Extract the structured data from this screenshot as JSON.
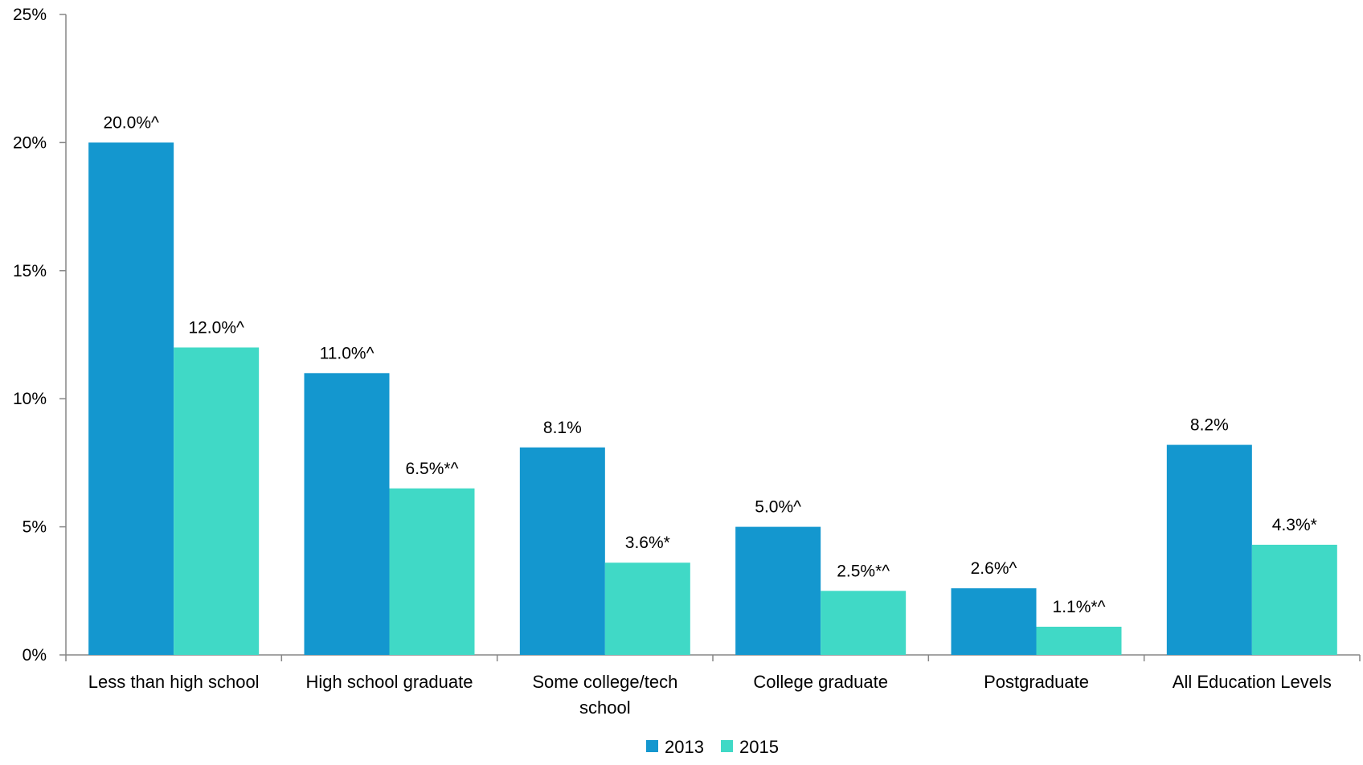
{
  "chart_data": {
    "type": "bar",
    "title": "",
    "xlabel": "",
    "ylabel": "",
    "categories": [
      [
        "Less than high school"
      ],
      [
        "High school graduate"
      ],
      [
        "Some college/tech",
        "school"
      ],
      [
        "College graduate"
      ],
      [
        "Postgraduate"
      ],
      [
        "All Education Levels"
      ]
    ],
    "series": [
      {
        "name": "2013",
        "color": "#1497cf",
        "values": [
          20.0,
          11.0,
          8.1,
          5.0,
          2.6,
          8.2
        ],
        "labels": [
          "20.0%^",
          "11.0%^",
          "8.1%",
          "5.0%^",
          "2.6%^",
          "8.2%"
        ]
      },
      {
        "name": "2015",
        "color": "#40d9c6",
        "values": [
          12.0,
          6.5,
          3.6,
          2.5,
          1.1,
          4.3
        ],
        "labels": [
          "12.0%^",
          "6.5%*^",
          "3.6%*",
          "2.5%*^",
          "1.1%*^",
          "4.3%*"
        ]
      }
    ],
    "ylim": [
      0,
      25
    ],
    "yticks": [
      {
        "value": 0,
        "label": "0%"
      },
      {
        "value": 5,
        "label": "5%"
      },
      {
        "value": 10,
        "label": "10%"
      },
      {
        "value": 15,
        "label": "15%"
      },
      {
        "value": 20,
        "label": "20%"
      },
      {
        "value": 25,
        "label": "25%"
      }
    ],
    "grid": false,
    "legend_position": "bottom"
  }
}
